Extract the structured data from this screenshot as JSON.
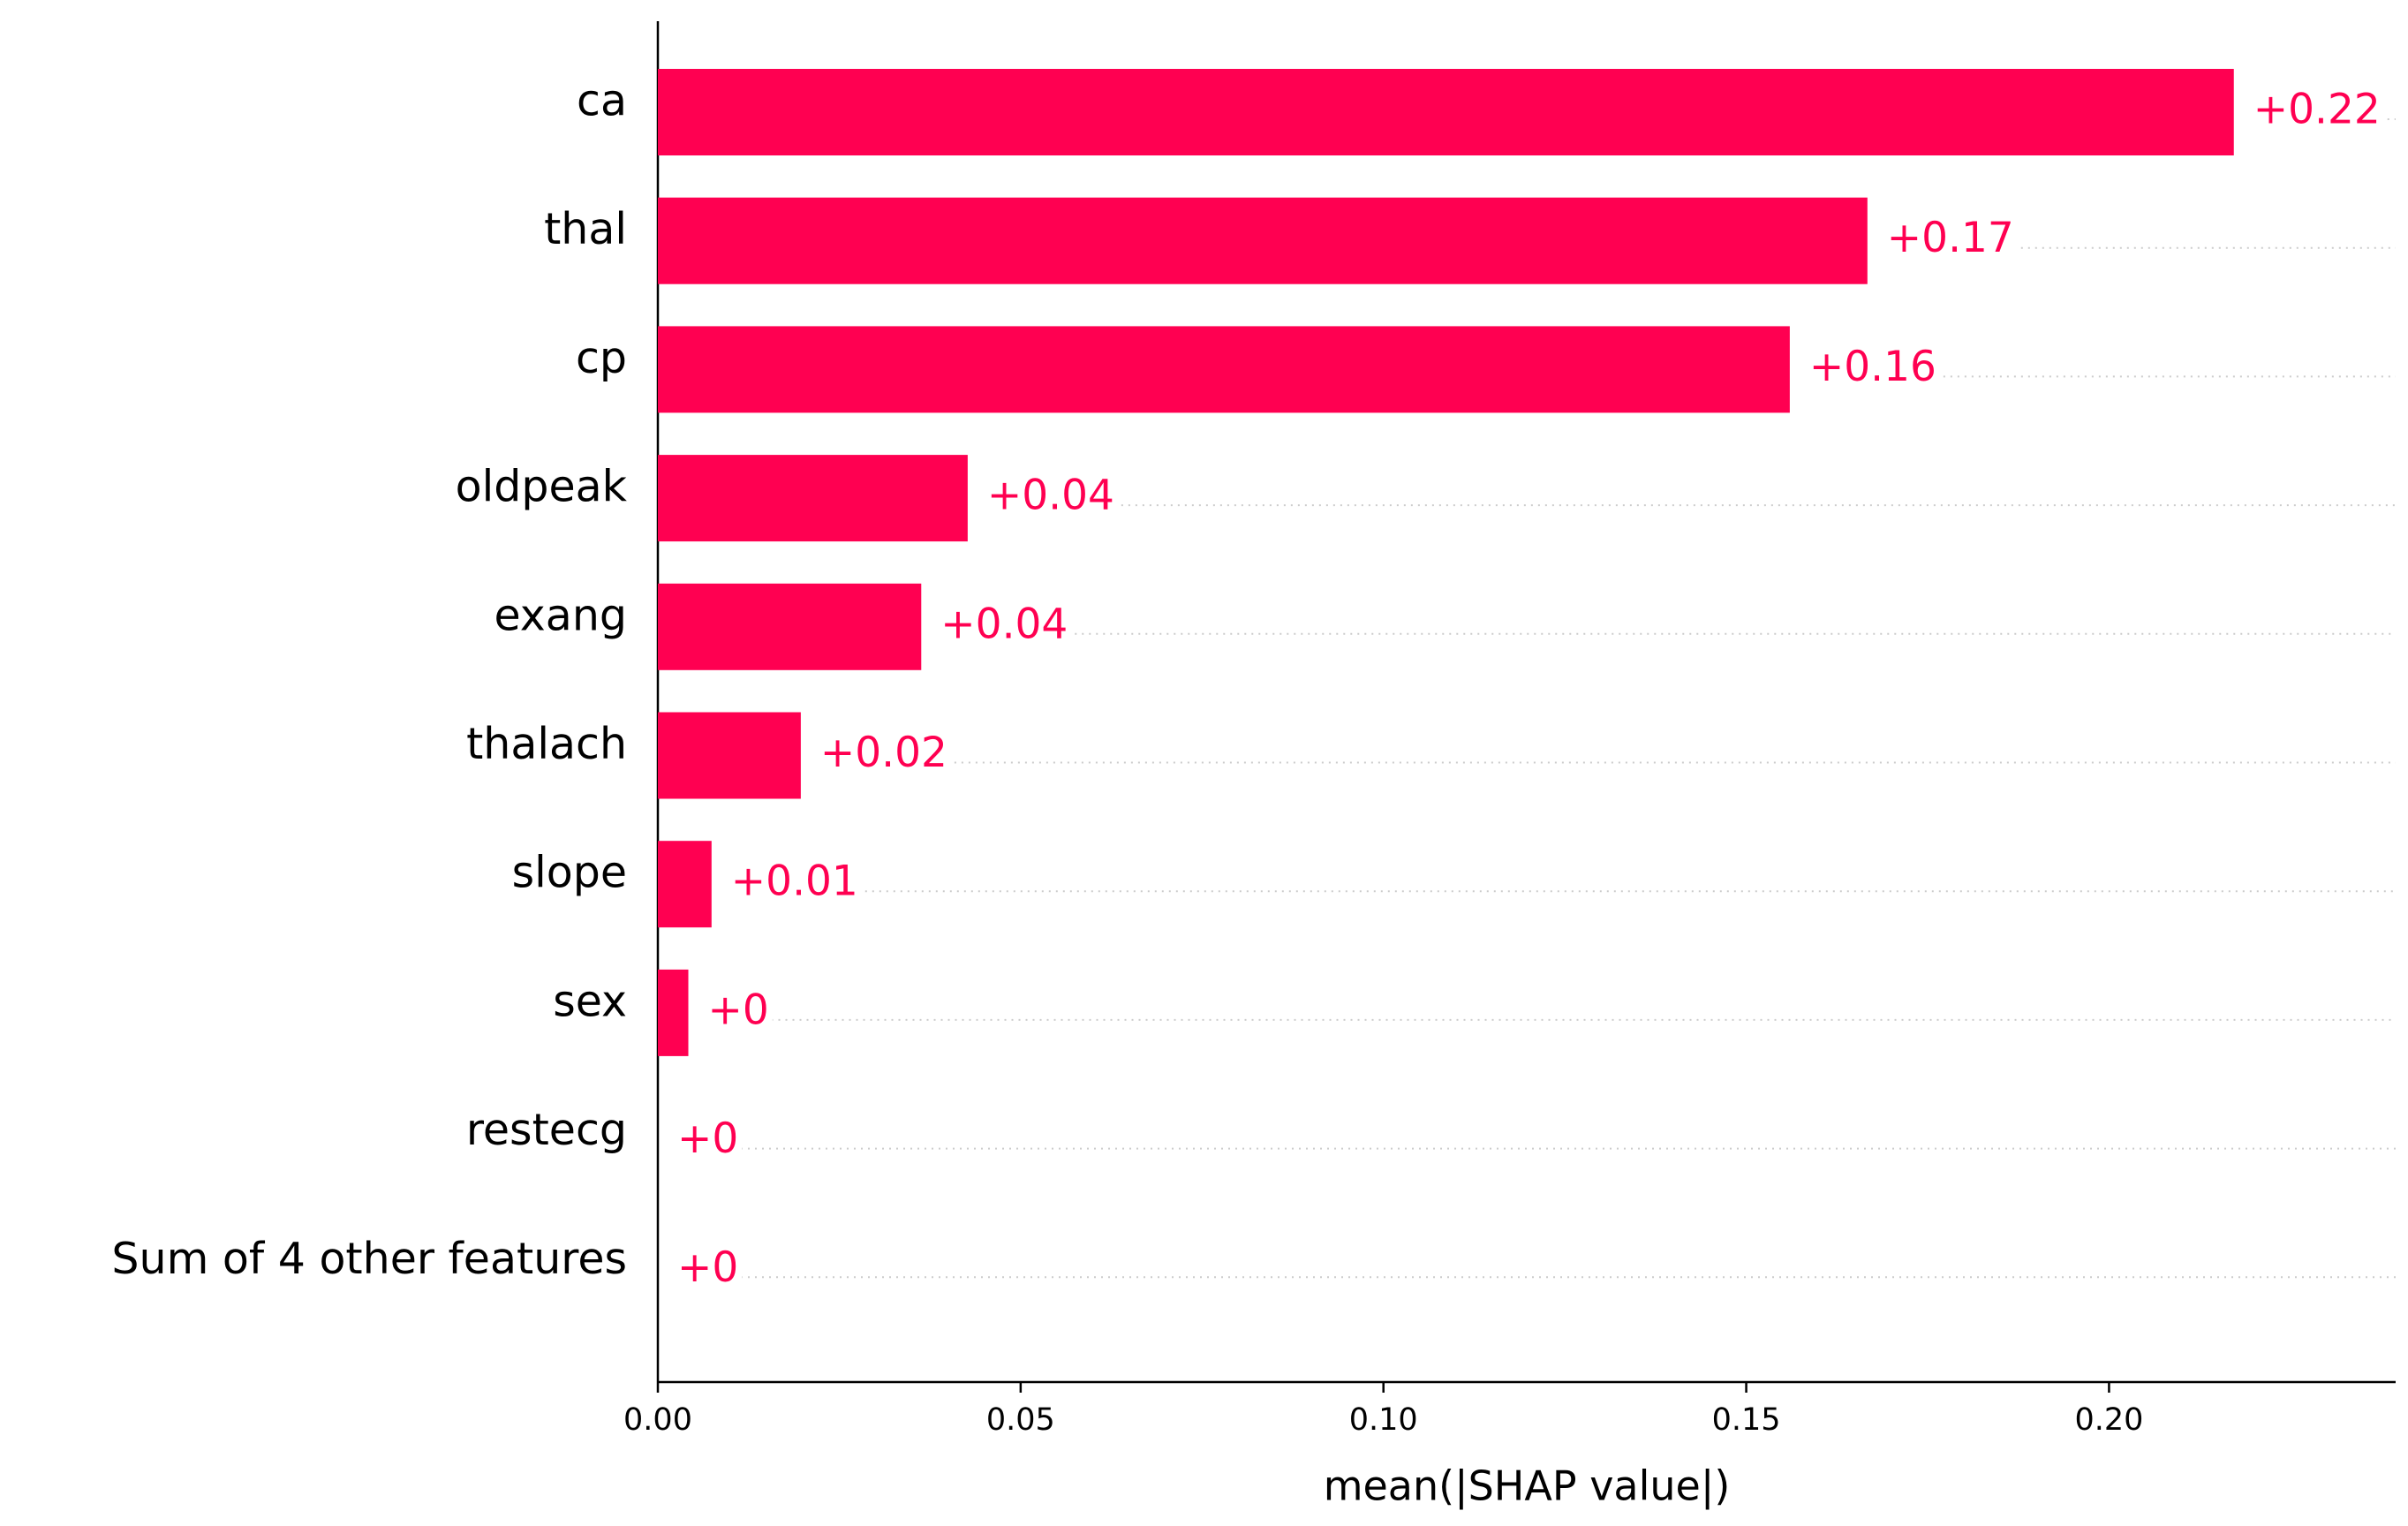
{
  "chart_data": {
    "type": "bar",
    "orientation": "horizontal",
    "categories": [
      "ca",
      "thal",
      "cp",
      "oldpeak",
      "exang",
      "thalach",
      "slope",
      "sex",
      "restecg",
      "Sum of 4 other features"
    ],
    "values": [
      0.2172,
      0.1667,
      0.156,
      0.0427,
      0.0363,
      0.0197,
      0.0074,
      0.0042,
      0,
      0
    ],
    "value_labels": [
      "+0.22",
      "+0.17",
      "+0.16",
      "+0.04",
      "+0.04",
      "+0.02",
      "+0.01",
      "+0",
      "+0",
      "+0"
    ],
    "color": "#ff0051",
    "xlabel": "mean(|SHAP value|)",
    "xlim": [
      0,
      0.2395
    ],
    "xticks": [
      {
        "value": 0,
        "label": "0.00"
      },
      {
        "value": 0.05,
        "label": "0.05"
      },
      {
        "value": 0.1,
        "label": "0.10"
      },
      {
        "value": 0.15,
        "label": "0.15"
      },
      {
        "value": 0.2,
        "label": "0.20"
      }
    ]
  }
}
